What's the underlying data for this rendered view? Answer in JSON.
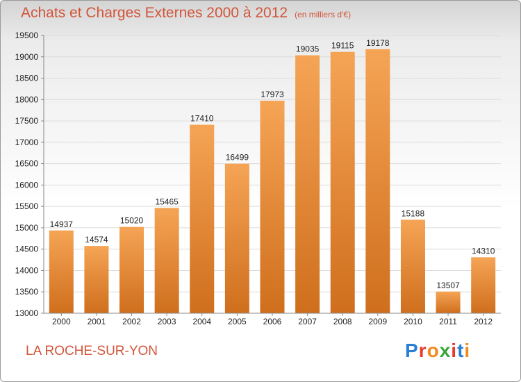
{
  "header": {
    "title": "Achats et Charges Externes 2000 à 2012",
    "subtitle": "(en milliers d'€)"
  },
  "footer": {
    "commune": "LA ROCHE-SUR-YON",
    "logo": "Proxiti"
  },
  "colors": {
    "title": "#d2553a",
    "bar_light": "#f5a455",
    "bar_dark": "#cf6f1d",
    "logo_letters": [
      "#2a7fd4",
      "#e8392c",
      "#f08a1c",
      "#3aa63a",
      "#e8392c",
      "#2a7fd4",
      "#f08a1c"
    ]
  },
  "chart_data": {
    "type": "bar",
    "categories": [
      "2000",
      "2001",
      "2002",
      "2003",
      "2004",
      "2005",
      "2006",
      "2007",
      "2008",
      "2009",
      "2010",
      "2011",
      "2012"
    ],
    "values": [
      14937,
      14574,
      15020,
      15465,
      17410,
      16499,
      17973,
      19035,
      19115,
      19178,
      15188,
      13507,
      14310
    ],
    "title": "Achats et Charges Externes 2000 à 2012",
    "subtitle": "(en milliers d'€)",
    "ylim": [
      13000,
      19500
    ],
    "yticks": [
      13000,
      13500,
      14000,
      14500,
      15000,
      15500,
      16000,
      16500,
      17000,
      17500,
      18000,
      18500,
      19000,
      19500
    ],
    "grid": true,
    "data_labels": true
  }
}
